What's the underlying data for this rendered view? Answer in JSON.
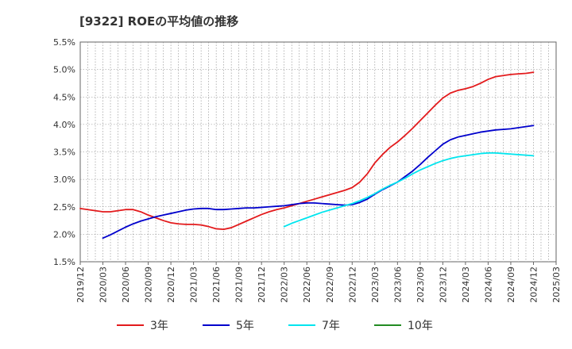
{
  "title": "[9322]  ROEの平均値の推移",
  "chart_data": {
    "type": "line",
    "title": "[9322]  ROEの平均値の推移",
    "xlabel": "",
    "ylabel": "",
    "x_ticks": [
      "2019/12",
      "2020/03",
      "2020/06",
      "2020/09",
      "2020/12",
      "2021/03",
      "2021/06",
      "2021/09",
      "2021/12",
      "2022/03",
      "2022/06",
      "2022/09",
      "2022/12",
      "2023/03",
      "2023/06",
      "2023/09",
      "2023/12",
      "2024/03",
      "2024/06",
      "2024/09",
      "2024/12",
      "2025/03"
    ],
    "y_ticks": [
      "1.5%",
      "2.0%",
      "2.5%",
      "3.0%",
      "3.5%",
      "4.0%",
      "4.5%",
      "5.0%",
      "5.5%"
    ],
    "ylim": [
      1.5,
      5.5
    ],
    "grid": true,
    "legend_position": "bottom",
    "series": [
      {
        "name": "3年",
        "color": "#e31a1c",
        "points": [
          [
            "2019/12",
            2.47
          ],
          [
            "2020/01",
            2.45
          ],
          [
            "2020/02",
            2.43
          ],
          [
            "2020/03",
            2.41
          ],
          [
            "2020/04",
            2.41
          ],
          [
            "2020/05",
            2.43
          ],
          [
            "2020/06",
            2.45
          ],
          [
            "2020/07",
            2.45
          ],
          [
            "2020/08",
            2.41
          ],
          [
            "2020/09",
            2.35
          ],
          [
            "2020/10",
            2.3
          ],
          [
            "2020/11",
            2.25
          ],
          [
            "2020/12",
            2.21
          ],
          [
            "2021/01",
            2.19
          ],
          [
            "2021/02",
            2.18
          ],
          [
            "2021/03",
            2.18
          ],
          [
            "2021/04",
            2.17
          ],
          [
            "2021/05",
            2.14
          ],
          [
            "2021/06",
            2.1
          ],
          [
            "2021/07",
            2.09
          ],
          [
            "2021/08",
            2.12
          ],
          [
            "2021/09",
            2.18
          ],
          [
            "2021/10",
            2.24
          ],
          [
            "2021/11",
            2.3
          ],
          [
            "2021/12",
            2.36
          ],
          [
            "2022/01",
            2.41
          ],
          [
            "2022/02",
            2.45
          ],
          [
            "2022/03",
            2.48
          ],
          [
            "2022/04",
            2.52
          ],
          [
            "2022/05",
            2.56
          ],
          [
            "2022/06",
            2.6
          ],
          [
            "2022/07",
            2.64
          ],
          [
            "2022/08",
            2.68
          ],
          [
            "2022/09",
            2.72
          ],
          [
            "2022/10",
            2.76
          ],
          [
            "2022/11",
            2.8
          ],
          [
            "2022/12",
            2.85
          ],
          [
            "2023/01",
            2.95
          ],
          [
            "2023/02",
            3.1
          ],
          [
            "2023/03",
            3.3
          ],
          [
            "2023/04",
            3.45
          ],
          [
            "2023/05",
            3.58
          ],
          [
            "2023/06",
            3.68
          ],
          [
            "2023/07",
            3.8
          ],
          [
            "2023/08",
            3.93
          ],
          [
            "2023/09",
            4.07
          ],
          [
            "2023/10",
            4.21
          ],
          [
            "2023/11",
            4.35
          ],
          [
            "2023/12",
            4.48
          ],
          [
            "2024/01",
            4.57
          ],
          [
            "2024/02",
            4.62
          ],
          [
            "2024/03",
            4.65
          ],
          [
            "2024/04",
            4.69
          ],
          [
            "2024/05",
            4.75
          ],
          [
            "2024/06",
            4.82
          ],
          [
            "2024/07",
            4.87
          ],
          [
            "2024/08",
            4.89
          ],
          [
            "2024/09",
            4.91
          ],
          [
            "2024/10",
            4.92
          ],
          [
            "2024/11",
            4.93
          ],
          [
            "2024/12",
            4.95
          ]
        ]
      },
      {
        "name": "5年",
        "color": "#0000cc",
        "points": [
          [
            "2020/03",
            1.93
          ],
          [
            "2020/04",
            1.99
          ],
          [
            "2020/05",
            2.06
          ],
          [
            "2020/06",
            2.13
          ],
          [
            "2020/07",
            2.19
          ],
          [
            "2020/08",
            2.24
          ],
          [
            "2020/09",
            2.28
          ],
          [
            "2020/10",
            2.32
          ],
          [
            "2020/11",
            2.35
          ],
          [
            "2020/12",
            2.38
          ],
          [
            "2021/01",
            2.41
          ],
          [
            "2021/02",
            2.44
          ],
          [
            "2021/03",
            2.46
          ],
          [
            "2021/04",
            2.47
          ],
          [
            "2021/05",
            2.47
          ],
          [
            "2021/06",
            2.45
          ],
          [
            "2021/07",
            2.45
          ],
          [
            "2021/08",
            2.46
          ],
          [
            "2021/09",
            2.47
          ],
          [
            "2021/10",
            2.48
          ],
          [
            "2021/11",
            2.48
          ],
          [
            "2021/12",
            2.49
          ],
          [
            "2022/01",
            2.5
          ],
          [
            "2022/02",
            2.51
          ],
          [
            "2022/03",
            2.52
          ],
          [
            "2022/04",
            2.54
          ],
          [
            "2022/05",
            2.56
          ],
          [
            "2022/06",
            2.57
          ],
          [
            "2022/07",
            2.57
          ],
          [
            "2022/08",
            2.56
          ],
          [
            "2022/09",
            2.55
          ],
          [
            "2022/10",
            2.54
          ],
          [
            "2022/11",
            2.53
          ],
          [
            "2022/12",
            2.54
          ],
          [
            "2023/01",
            2.58
          ],
          [
            "2023/02",
            2.64
          ],
          [
            "2023/03",
            2.73
          ],
          [
            "2023/04",
            2.81
          ],
          [
            "2023/05",
            2.88
          ],
          [
            "2023/06",
            2.95
          ],
          [
            "2023/07",
            3.05
          ],
          [
            "2023/08",
            3.15
          ],
          [
            "2023/09",
            3.27
          ],
          [
            "2023/10",
            3.4
          ],
          [
            "2023/11",
            3.52
          ],
          [
            "2023/12",
            3.64
          ],
          [
            "2024/01",
            3.72
          ],
          [
            "2024/02",
            3.77
          ],
          [
            "2024/03",
            3.8
          ],
          [
            "2024/04",
            3.83
          ],
          [
            "2024/05",
            3.86
          ],
          [
            "2024/06",
            3.88
          ],
          [
            "2024/07",
            3.9
          ],
          [
            "2024/08",
            3.91
          ],
          [
            "2024/09",
            3.92
          ],
          [
            "2024/10",
            3.94
          ],
          [
            "2024/11",
            3.96
          ],
          [
            "2024/12",
            3.98
          ]
        ]
      },
      {
        "name": "7年",
        "color": "#00e5ee",
        "points": [
          [
            "2022/03",
            2.14
          ],
          [
            "2022/04",
            2.2
          ],
          [
            "2022/05",
            2.25
          ],
          [
            "2022/06",
            2.3
          ],
          [
            "2022/07",
            2.35
          ],
          [
            "2022/08",
            2.4
          ],
          [
            "2022/09",
            2.44
          ],
          [
            "2022/10",
            2.48
          ],
          [
            "2022/11",
            2.52
          ],
          [
            "2022/12",
            2.56
          ],
          [
            "2023/01",
            2.61
          ],
          [
            "2023/02",
            2.67
          ],
          [
            "2023/03",
            2.74
          ],
          [
            "2023/04",
            2.82
          ],
          [
            "2023/05",
            2.89
          ],
          [
            "2023/06",
            2.95
          ],
          [
            "2023/07",
            3.02
          ],
          [
            "2023/08",
            3.1
          ],
          [
            "2023/09",
            3.17
          ],
          [
            "2023/10",
            3.23
          ],
          [
            "2023/11",
            3.29
          ],
          [
            "2023/12",
            3.34
          ],
          [
            "2024/01",
            3.38
          ],
          [
            "2024/02",
            3.41
          ],
          [
            "2024/03",
            3.43
          ],
          [
            "2024/04",
            3.45
          ],
          [
            "2024/05",
            3.47
          ],
          [
            "2024/06",
            3.48
          ],
          [
            "2024/07",
            3.48
          ],
          [
            "2024/08",
            3.47
          ],
          [
            "2024/09",
            3.46
          ],
          [
            "2024/10",
            3.45
          ],
          [
            "2024/11",
            3.44
          ],
          [
            "2024/12",
            3.43
          ]
        ]
      },
      {
        "name": "10年",
        "color": "#228b22",
        "points": []
      }
    ]
  }
}
